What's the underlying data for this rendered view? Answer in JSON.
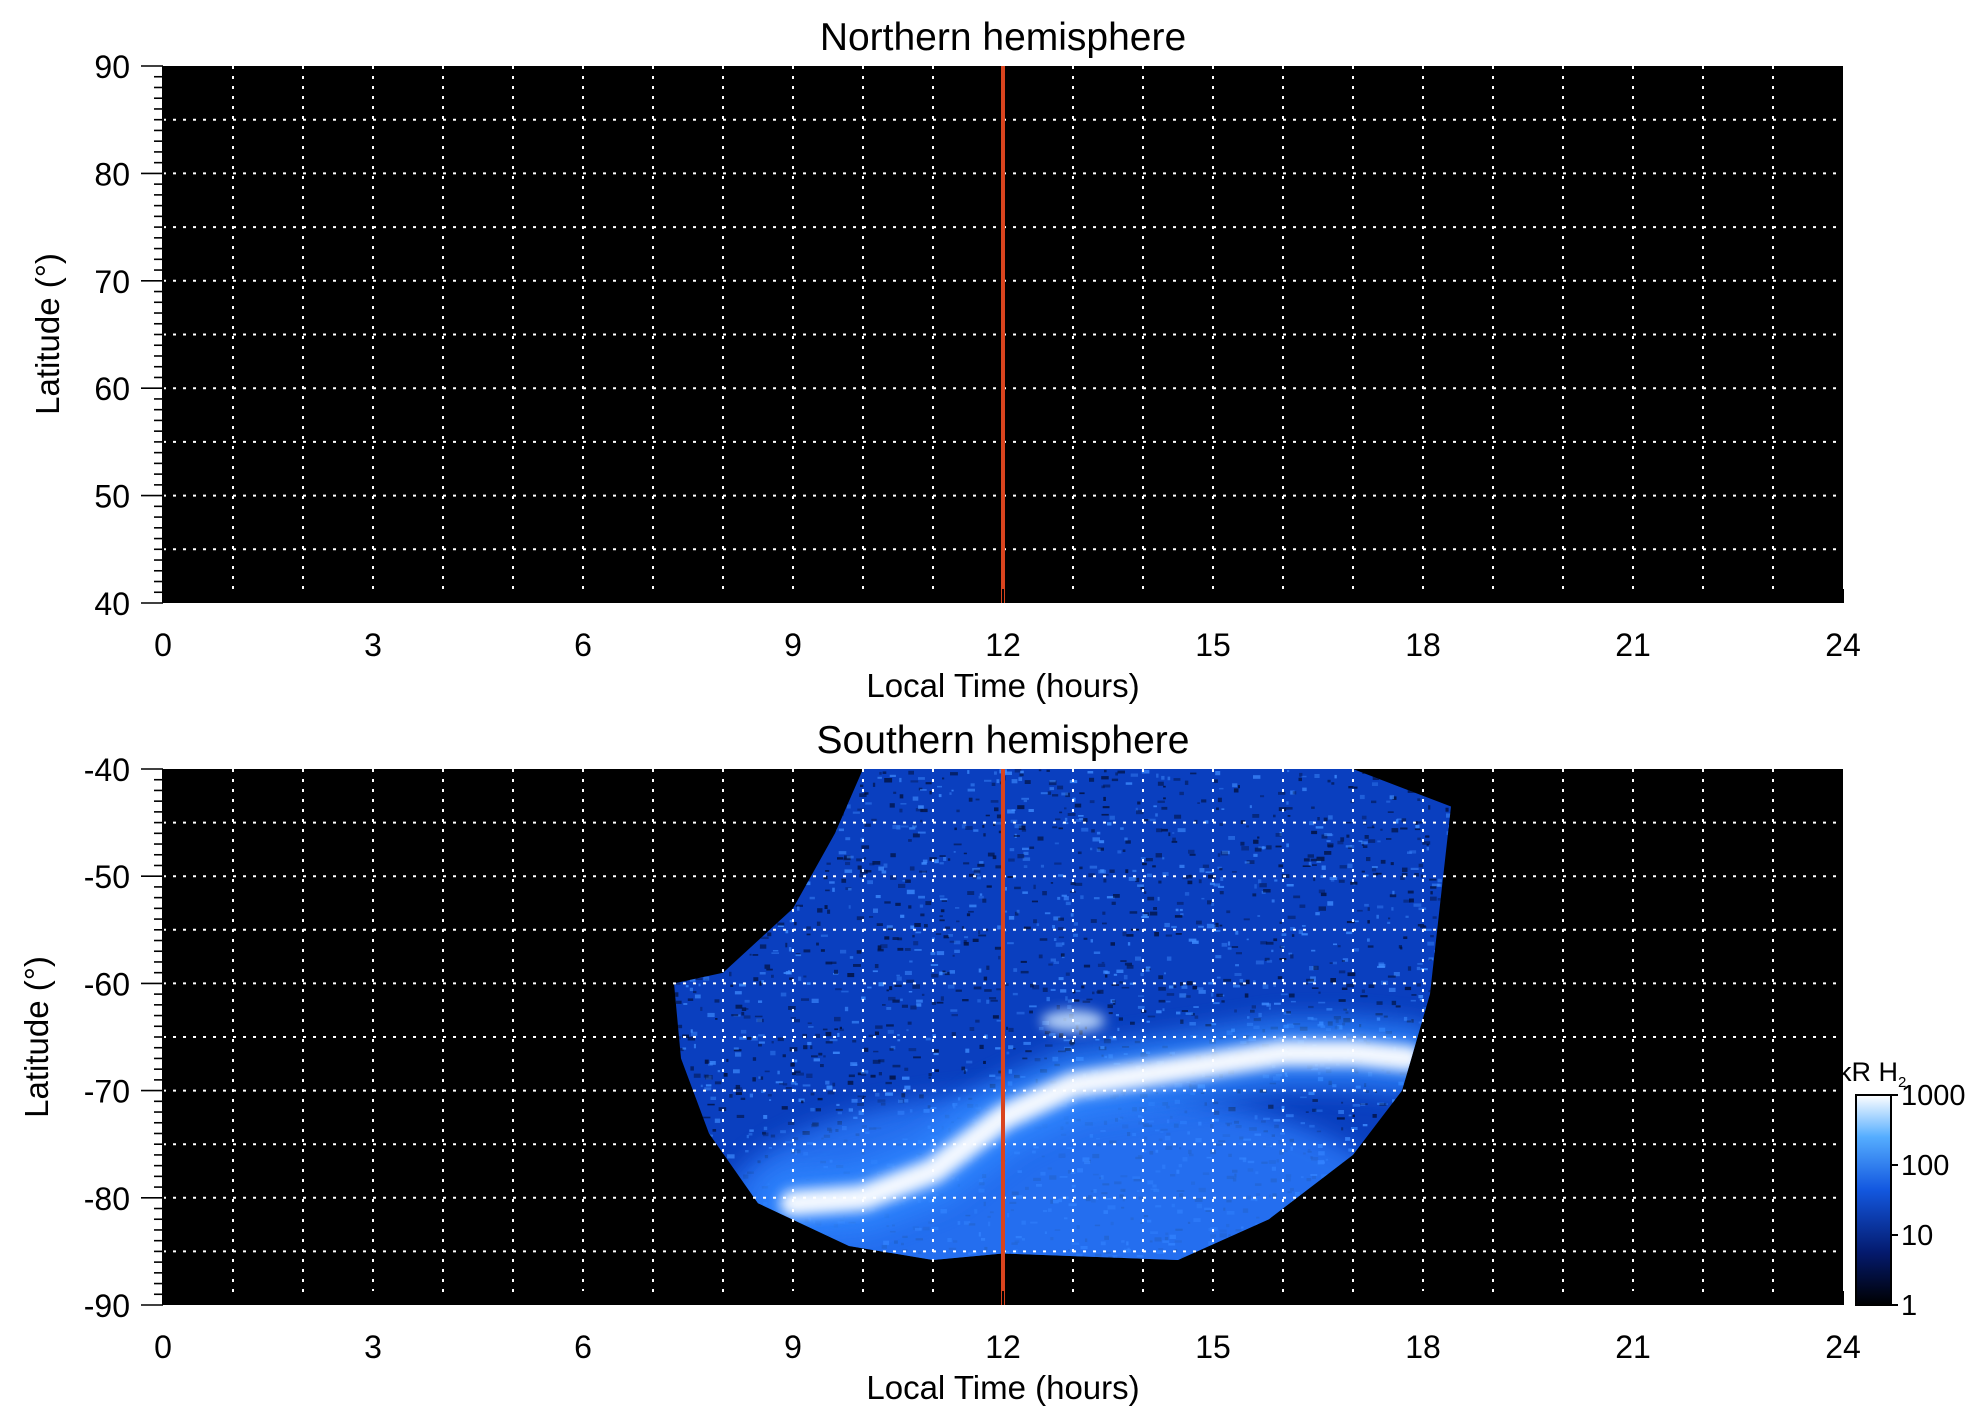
{
  "colors": {
    "background": "#000000",
    "grid": "#ffffff",
    "noon_line": "#d9441e",
    "aurora_faint": "#0a3fbf",
    "aurora_mid": "#2d86ff",
    "aurora_bright": "#ffffff"
  },
  "chart_data": [
    {
      "type": "heatmap",
      "title": "Northern hemisphere",
      "xlabel": "Local Time (hours)",
      "ylabel": "Latitude (°)",
      "xlim": [
        0,
        24
      ],
      "ylim": [
        40,
        90
      ],
      "xticks": [
        "0",
        "3",
        "6",
        "9",
        "12",
        "15",
        "18",
        "21",
        "24"
      ],
      "yticks": [
        "40",
        "50",
        "60",
        "70",
        "80",
        "90"
      ],
      "grid": true,
      "marker_line_x": 12,
      "coverage": "none"
    },
    {
      "type": "heatmap",
      "title": "Southern hemisphere",
      "xlabel": "Local Time (hours)",
      "ylabel": "Latitude (°)",
      "xlim": [
        0,
        24
      ],
      "ylim": [
        -90,
        -40
      ],
      "xticks": [
        "0",
        "3",
        "6",
        "9",
        "12",
        "15",
        "18",
        "21",
        "24"
      ],
      "yticks": [
        "-40",
        "-50",
        "-60",
        "-70",
        "-80",
        "-90"
      ],
      "grid": true,
      "marker_line_x": 12,
      "coverage_boundary": [
        [
          7.3,
          -60.0
        ],
        [
          8.0,
          -59.0
        ],
        [
          9.0,
          -53.0
        ],
        [
          9.6,
          -46.0
        ],
        [
          10.0,
          -40.0
        ],
        [
          17.0,
          -40.0
        ],
        [
          18.4,
          -43.5
        ],
        [
          18.1,
          -61.0
        ],
        [
          17.7,
          -70.0
        ],
        [
          17.0,
          -76.0
        ],
        [
          15.8,
          -82.0
        ],
        [
          14.5,
          -85.8
        ],
        [
          12.0,
          -85.2
        ],
        [
          11.0,
          -85.8
        ],
        [
          9.8,
          -84.5
        ],
        [
          8.5,
          -80.5
        ],
        [
          7.8,
          -74.0
        ],
        [
          7.4,
          -67.0
        ]
      ],
      "auroral_oval": [
        [
          9.0,
          -80.5
        ],
        [
          10.0,
          -80.0
        ],
        [
          11.0,
          -77.5
        ],
        [
          12.0,
          -72.5
        ],
        [
          13.0,
          -69.5
        ],
        [
          14.0,
          -68.5
        ],
        [
          15.0,
          -67.5
        ],
        [
          16.0,
          -66.5
        ],
        [
          17.0,
          -66.5
        ],
        [
          17.8,
          -67.0
        ]
      ],
      "bright_spot": [
        13.0,
        -63.5
      ]
    }
  ],
  "colorbar": {
    "title": "kR H",
    "title_sub": "2",
    "scale": "log",
    "ticks": [
      "1",
      "10",
      "100",
      "1000"
    ],
    "range": [
      1,
      1000
    ]
  }
}
